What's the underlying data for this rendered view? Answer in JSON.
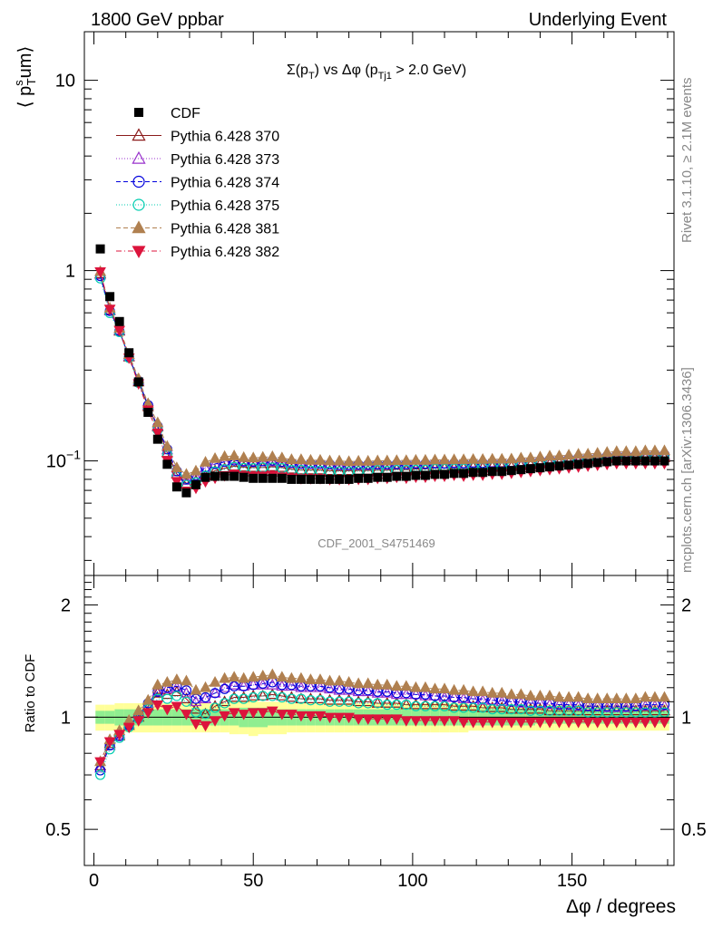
{
  "header": {
    "left": "1800 GeV ppbar",
    "right": "Underlying Event"
  },
  "plot_title": {
    "pre": "Σ(p",
    "sub1": "T",
    "mid": ") vs Δφ (p",
    "sub2": "Tj1",
    "post": " > 2.0 GeV)"
  },
  "ylabel_main": {
    "pre": "⟨ p",
    "sup": "s",
    "sub": "T",
    "post": "um⟩"
  },
  "ylabel_ratio": "Ratio to CDF",
  "xlabel": "Δφ / degrees",
  "side_texts": {
    "rivet": "Rivet 3.1.10, ≥ 2.1M events",
    "mcplots": "mcplots.cern.ch [arXiv:1306.3436]"
  },
  "watermark": "CDF_2001_S4751469",
  "main_ticks": {
    "y_labels": [
      {
        "v": 10,
        "text": "10"
      },
      {
        "v": 1,
        "text": "1"
      },
      {
        "v": 0.1,
        "text": "10",
        "sup": "−1"
      }
    ]
  },
  "ratio_ticks": {
    "y_labels": [
      {
        "v": 2,
        "text": "2"
      },
      {
        "v": 1,
        "text": "1"
      },
      {
        "v": 0.5,
        "text": "0.5"
      }
    ]
  },
  "x_ticks": [
    {
      "v": 0,
      "text": "0"
    },
    {
      "v": 50,
      "text": "50"
    },
    {
      "v": 100,
      "text": "100"
    },
    {
      "v": 150,
      "text": "150"
    }
  ],
  "colors": {
    "cdf": "#000000",
    "p370": "#8b1a1a",
    "p373": "#9932cc",
    "p374": "#0000dd",
    "p375": "#00cdb0",
    "p381": "#b08050",
    "p382": "#dc143c",
    "band_inner": "#90ee90",
    "band_outer": "#ffff99"
  },
  "chart_data": {
    "type": "scatter",
    "x_scale": "linear",
    "y_scale_main": "log",
    "y_scale_ratio": "log",
    "xlim": [
      -3,
      182
    ],
    "ylim_main": [
      0.025,
      18
    ],
    "ylim_ratio": [
      0.4,
      2.4
    ],
    "x": [
      2,
      5,
      8,
      11,
      14,
      17,
      20,
      23,
      26,
      29,
      32,
      35,
      38,
      41,
      44,
      47,
      50,
      53,
      56,
      59,
      62,
      65,
      68,
      71,
      74,
      77,
      80,
      83,
      86,
      89,
      92,
      95,
      98,
      101,
      104,
      107,
      110,
      113,
      116,
      119,
      122,
      125,
      128,
      131,
      134,
      137,
      140,
      143,
      146,
      149,
      152,
      155,
      158,
      161,
      164,
      167,
      170,
      173,
      176,
      179
    ],
    "legend": [
      {
        "key": "cdf",
        "label": "CDF",
        "marker": "square",
        "line": "none"
      },
      {
        "key": "p370",
        "label": "Pythia 6.428 370",
        "marker": "triangle-open",
        "line": "solid"
      },
      {
        "key": "p373",
        "label": "Pythia 6.428 373",
        "marker": "triangle-open",
        "line": "dotted"
      },
      {
        "key": "p374",
        "label": "Pythia 6.428 374",
        "marker": "circle-open",
        "line": "dashed"
      },
      {
        "key": "p375",
        "label": "Pythia 6.428 375",
        "marker": "circle-open",
        "line": "dotted"
      },
      {
        "key": "p381",
        "label": "Pythia 6.428 381",
        "marker": "triangle-filled",
        "line": "dashed"
      },
      {
        "key": "p382",
        "label": "Pythia 6.428 382",
        "marker": "triangle-down-filled",
        "line": "dashdot"
      }
    ],
    "cdf_values": [
      1.3,
      0.73,
      0.54,
      0.37,
      0.26,
      0.18,
      0.13,
      0.096,
      0.073,
      0.068,
      0.075,
      0.082,
      0.083,
      0.083,
      0.083,
      0.082,
      0.081,
      0.081,
      0.081,
      0.081,
      0.08,
      0.08,
      0.08,
      0.08,
      0.08,
      0.08,
      0.08,
      0.081,
      0.081,
      0.082,
      0.082,
      0.083,
      0.083,
      0.084,
      0.084,
      0.085,
      0.085,
      0.086,
      0.086,
      0.087,
      0.087,
      0.088,
      0.088,
      0.089,
      0.09,
      0.091,
      0.092,
      0.093,
      0.094,
      0.095,
      0.096,
      0.097,
      0.098,
      0.099,
      0.1,
      0.1,
      0.1,
      0.1,
      0.1,
      0.1
    ],
    "band_inner_halfwidth": [
      0.04,
      0.04,
      0.05,
      0.05,
      0.05,
      0.05,
      0.05,
      0.05,
      0.05,
      0.05,
      0.05,
      0.05,
      0.05,
      0.05,
      0.05,
      0.06,
      0.06,
      0.06,
      0.05,
      0.05,
      0.05,
      0.05,
      0.05,
      0.05,
      0.05,
      0.05,
      0.05,
      0.05,
      0.05,
      0.05,
      0.05,
      0.05,
      0.05,
      0.05,
      0.05,
      0.05,
      0.05,
      0.05,
      0.05,
      0.05,
      0.05,
      0.05,
      0.05,
      0.05,
      0.05,
      0.05,
      0.04,
      0.04,
      0.04,
      0.04,
      0.04,
      0.04,
      0.04,
      0.04,
      0.04,
      0.04,
      0.04,
      0.04,
      0.04,
      0.04
    ],
    "band_outer_halfwidth": [
      0.08,
      0.08,
      0.09,
      0.09,
      0.09,
      0.09,
      0.09,
      0.09,
      0.09,
      0.09,
      0.09,
      0.09,
      0.09,
      0.09,
      0.1,
      0.1,
      0.11,
      0.1,
      0.1,
      0.1,
      0.09,
      0.09,
      0.09,
      0.09,
      0.09,
      0.09,
      0.09,
      0.09,
      0.09,
      0.09,
      0.09,
      0.09,
      0.09,
      0.09,
      0.09,
      0.09,
      0.09,
      0.09,
      0.09,
      0.08,
      0.08,
      0.08,
      0.08,
      0.08,
      0.08,
      0.08,
      0.08,
      0.08,
      0.08,
      0.08,
      0.08,
      0.08,
      0.08,
      0.08,
      0.08,
      0.08,
      0.08,
      0.08,
      0.08,
      0.08
    ],
    "ratios": {
      "p370": [
        0.74,
        0.85,
        0.89,
        0.95,
        1.0,
        1.07,
        1.16,
        1.15,
        1.17,
        1.12,
        1.05,
        1.02,
        1.07,
        1.1,
        1.13,
        1.13,
        1.14,
        1.14,
        1.15,
        1.14,
        1.13,
        1.12,
        1.12,
        1.12,
        1.11,
        1.11,
        1.11,
        1.1,
        1.1,
        1.09,
        1.09,
        1.09,
        1.08,
        1.08,
        1.08,
        1.08,
        1.08,
        1.07,
        1.07,
        1.07,
        1.06,
        1.06,
        1.06,
        1.05,
        1.05,
        1.05,
        1.05,
        1.04,
        1.04,
        1.04,
        1.04,
        1.04,
        1.04,
        1.04,
        1.04,
        1.04,
        1.04,
        1.04,
        1.04,
        1.04
      ],
      "p373": [
        0.73,
        0.84,
        0.9,
        0.96,
        1.02,
        1.09,
        1.17,
        1.19,
        1.2,
        1.16,
        1.1,
        1.12,
        1.16,
        1.2,
        1.22,
        1.21,
        1.22,
        1.22,
        1.22,
        1.21,
        1.21,
        1.2,
        1.2,
        1.2,
        1.19,
        1.18,
        1.18,
        1.17,
        1.17,
        1.16,
        1.16,
        1.15,
        1.15,
        1.15,
        1.14,
        1.14,
        1.13,
        1.13,
        1.12,
        1.12,
        1.11,
        1.11,
        1.1,
        1.1,
        1.09,
        1.09,
        1.09,
        1.08,
        1.08,
        1.08,
        1.07,
        1.07,
        1.07,
        1.06,
        1.06,
        1.06,
        1.07,
        1.07,
        1.07,
        1.07
      ],
      "p374": [
        0.72,
        0.84,
        0.89,
        0.95,
        1.01,
        1.09,
        1.17,
        1.2,
        1.21,
        1.18,
        1.12,
        1.13,
        1.16,
        1.19,
        1.21,
        1.21,
        1.22,
        1.23,
        1.24,
        1.22,
        1.22,
        1.21,
        1.21,
        1.21,
        1.2,
        1.19,
        1.19,
        1.18,
        1.18,
        1.17,
        1.17,
        1.16,
        1.16,
        1.15,
        1.15,
        1.14,
        1.14,
        1.13,
        1.13,
        1.12,
        1.12,
        1.11,
        1.11,
        1.1,
        1.1,
        1.09,
        1.09,
        1.09,
        1.08,
        1.08,
        1.08,
        1.07,
        1.07,
        1.07,
        1.07,
        1.07,
        1.07,
        1.08,
        1.08,
        1.08
      ],
      "p375": [
        0.7,
        0.82,
        0.88,
        0.94,
        0.99,
        1.05,
        1.12,
        1.12,
        1.14,
        1.1,
        1.03,
        1.02,
        1.06,
        1.09,
        1.12,
        1.12,
        1.13,
        1.14,
        1.14,
        1.13,
        1.12,
        1.12,
        1.11,
        1.11,
        1.1,
        1.1,
        1.1,
        1.09,
        1.09,
        1.09,
        1.08,
        1.08,
        1.08,
        1.07,
        1.07,
        1.07,
        1.07,
        1.06,
        1.06,
        1.06,
        1.06,
        1.05,
        1.05,
        1.05,
        1.05,
        1.04,
        1.04,
        1.04,
        1.04,
        1.04,
        1.04,
        1.03,
        1.03,
        1.03,
        1.03,
        1.03,
        1.03,
        1.03,
        1.03,
        1.03
      ],
      "p381": [
        0.76,
        0.87,
        0.92,
        0.98,
        1.04,
        1.11,
        1.22,
        1.24,
        1.26,
        1.25,
        1.18,
        1.2,
        1.24,
        1.27,
        1.28,
        1.27,
        1.28,
        1.29,
        1.3,
        1.28,
        1.27,
        1.27,
        1.26,
        1.26,
        1.25,
        1.25,
        1.24,
        1.23,
        1.23,
        1.22,
        1.22,
        1.21,
        1.21,
        1.2,
        1.2,
        1.19,
        1.19,
        1.18,
        1.18,
        1.17,
        1.17,
        1.16,
        1.16,
        1.15,
        1.15,
        1.14,
        1.14,
        1.14,
        1.13,
        1.13,
        1.13,
        1.12,
        1.12,
        1.12,
        1.12,
        1.12,
        1.12,
        1.13,
        1.13,
        1.13
      ],
      "p382": [
        0.76,
        0.86,
        0.9,
        0.94,
        0.98,
        1.03,
        1.08,
        1.05,
        1.07,
        1.02,
        0.96,
        0.95,
        0.98,
        1.01,
        1.03,
        1.02,
        1.03,
        1.03,
        1.04,
        1.02,
        1.02,
        1.01,
        1.01,
        1.01,
        1.0,
        1.0,
        1.0,
        0.99,
        0.99,
        0.99,
        0.99,
        0.99,
        0.98,
        0.98,
        0.98,
        0.98,
        0.98,
        0.98,
        0.97,
        0.97,
        0.97,
        0.97,
        0.97,
        0.97,
        0.97,
        0.97,
        0.97,
        0.97,
        0.97,
        0.97,
        0.97,
        0.97,
        0.97,
        0.97,
        0.97,
        0.97,
        0.97,
        0.97,
        0.97,
        0.97
      ]
    }
  }
}
